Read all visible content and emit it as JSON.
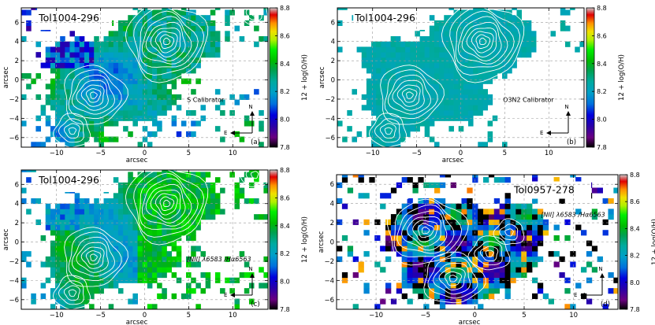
{
  "chart_data": [
    {
      "type": "heatmap",
      "panel_label": "(a)",
      "object_name": "Tol1004-296",
      "calibrator": "S Calibrator",
      "compass": {
        "north": "N",
        "east": "E"
      },
      "xlabel": "arcsec",
      "ylabel": "arcsec",
      "xlim": [
        -14,
        14
      ],
      "ylim": [
        -7,
        7.5
      ],
      "xticks": [
        -10,
        -5,
        0,
        5,
        10
      ],
      "yticks": [
        -6,
        -4,
        -2,
        0,
        2,
        4,
        6
      ],
      "colorbar": {
        "label": "12 + log(O/H)",
        "min": 7.8,
        "max": 8.8,
        "ticks": [
          7.8,
          8.0,
          8.2,
          8.4,
          8.6,
          8.8
        ]
      },
      "contour_peaks": [
        {
          "x": 2.5,
          "y": 4.0,
          "levels": 9
        },
        {
          "x": -5.8,
          "y": -1.6,
          "levels": 7
        },
        {
          "x": -8.2,
          "y": -5.3,
          "levels": 4
        },
        {
          "x": 12.5,
          "y": 7.0,
          "levels": 3
        }
      ]
    },
    {
      "type": "heatmap",
      "panel_label": "(b)",
      "object_name": "Tol1004-296",
      "calibrator": "O3N2 Calibrator",
      "compass": {
        "north": "N",
        "east": "E"
      },
      "xlabel": "arcsec",
      "ylabel": "arcsec",
      "xlim": [
        -14,
        14
      ],
      "ylim": [
        -7,
        7.5
      ],
      "xticks": [
        -10,
        -5,
        0,
        5,
        10
      ],
      "yticks": [
        -6,
        -4,
        -2,
        0,
        2,
        4,
        6
      ],
      "colorbar": {
        "label": "12 + log(O/H)",
        "min": 7.8,
        "max": 8.8,
        "ticks": [
          7.8,
          8.0,
          8.2,
          8.4,
          8.6,
          8.8
        ]
      },
      "contour_peaks": [
        {
          "x": 2.5,
          "y": 4.0,
          "levels": 9
        },
        {
          "x": -5.8,
          "y": -1.6,
          "levels": 7
        },
        {
          "x": -8.2,
          "y": -5.3,
          "levels": 4
        }
      ]
    },
    {
      "type": "heatmap",
      "panel_label": "(c)",
      "object_name": "Tol1004-296",
      "calibrator": "[NII] λ6583 /Hα6563",
      "compass": {
        "north": "N",
        "east": "E"
      },
      "xlabel": "arcsec",
      "ylabel": "arcsec",
      "xlim": [
        -14,
        14
      ],
      "ylim": [
        -7,
        7.5
      ],
      "xticks": [
        -10,
        -5,
        0,
        5,
        10
      ],
      "yticks": [
        -6,
        -4,
        -2,
        0,
        2,
        4,
        6
      ],
      "colorbar": {
        "label": "12 + log(O/H)",
        "min": 7.8,
        "max": 8.8,
        "ticks": [
          7.8,
          8.0,
          8.2,
          8.4,
          8.6,
          8.8
        ]
      },
      "contour_peaks": [
        {
          "x": 2.5,
          "y": 4.0,
          "levels": 9
        },
        {
          "x": -5.8,
          "y": -1.6,
          "levels": 7
        },
        {
          "x": -8.2,
          "y": -5.3,
          "levels": 4
        },
        {
          "x": 12.5,
          "y": 7.0,
          "levels": 3
        }
      ]
    },
    {
      "type": "heatmap",
      "panel_label": "(d)",
      "object_name": "Tol0957-278",
      "calibrator": "[NII] λ6583 /Hα6563",
      "compass": {
        "north": "N",
        "east": "E"
      },
      "xlabel": "arcsec",
      "ylabel": "arcsec",
      "xlim": [
        -14,
        14.5
      ],
      "ylim": [
        -7,
        7
      ],
      "xticks": [
        -10,
        -5,
        0,
        5,
        10
      ],
      "yticks": [
        -6,
        -4,
        -2,
        0,
        2,
        4,
        6
      ],
      "colorbar": {
        "label": "12 + log(O/H)",
        "min": 7.8,
        "max": 8.8,
        "ticks": [
          7.8,
          8.0,
          8.2,
          8.4,
          8.6,
          8.8
        ]
      },
      "contour_peaks": [
        {
          "x": -5.0,
          "y": 1.2,
          "levels": 8
        },
        {
          "x": -2.2,
          "y": -3.8,
          "levels": 6
        },
        {
          "x": 1.5,
          "y": -1.2,
          "levels": 4
        },
        {
          "x": 3.5,
          "y": 1.0,
          "levels": 3
        }
      ]
    }
  ]
}
